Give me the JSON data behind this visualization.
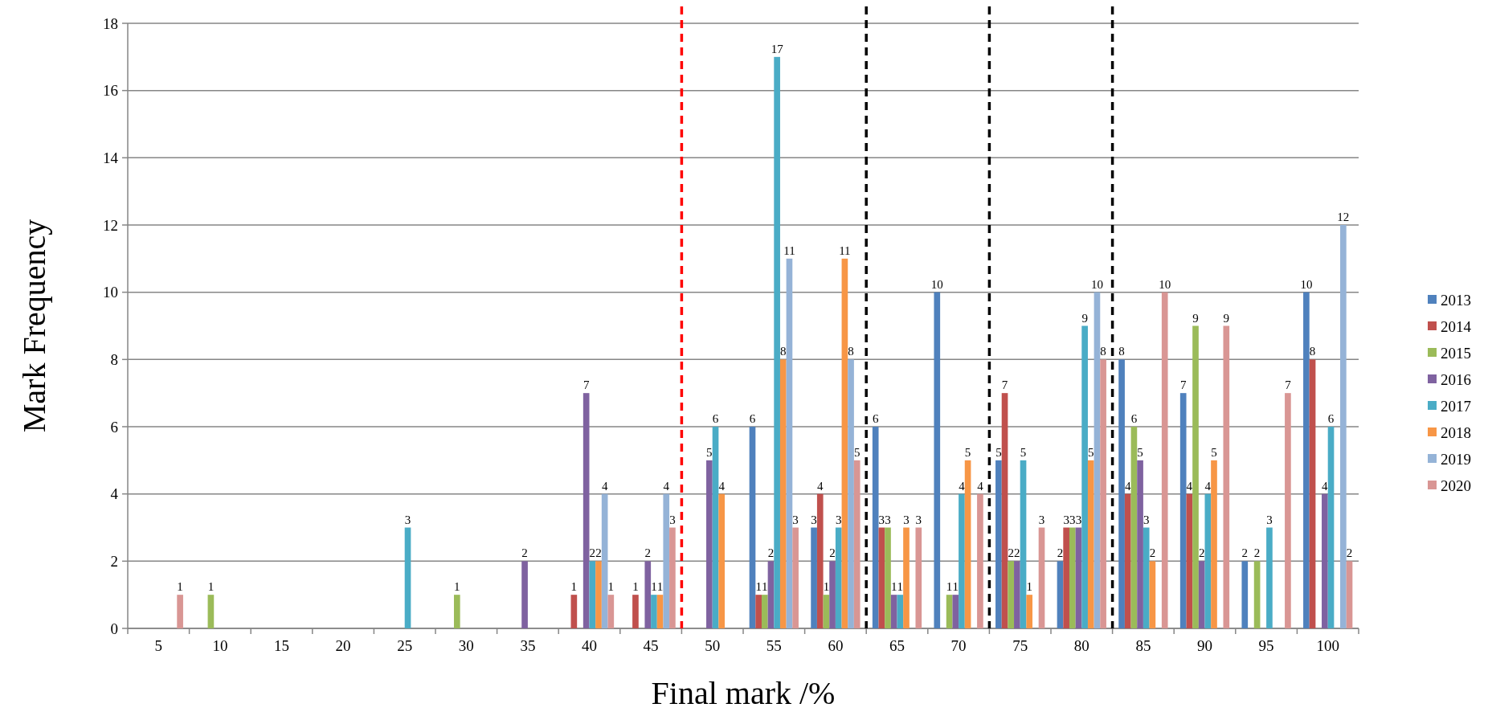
{
  "chart_data": {
    "type": "bar",
    "xlabel": "Final mark /%",
    "ylabel": "Mark Frequency",
    "x": [
      5,
      10,
      15,
      20,
      25,
      30,
      35,
      40,
      45,
      50,
      55,
      60,
      65,
      70,
      75,
      80,
      85,
      90,
      95,
      100
    ],
    "xlim": [
      2.5,
      102.5
    ],
    "xticks": [
      5,
      10,
      15,
      20,
      25,
      30,
      35,
      40,
      45,
      50,
      55,
      60,
      65,
      70,
      75,
      80,
      85,
      90,
      95,
      100
    ],
    "ylim": [
      0,
      18
    ],
    "yticks": [
      0,
      2,
      4,
      6,
      8,
      10,
      12,
      14,
      16,
      18
    ],
    "grid": "y",
    "legend": "right",
    "data_labels": true,
    "series": [
      {
        "name": "2013",
        "color": "#4f81bd",
        "values": [
          null,
          null,
          null,
          null,
          null,
          null,
          null,
          null,
          null,
          null,
          6,
          3,
          6,
          10,
          5,
          2,
          8,
          7,
          2,
          10
        ]
      },
      {
        "name": "2014",
        "color": "#c0504d",
        "values": [
          null,
          null,
          null,
          null,
          null,
          null,
          null,
          1,
          1,
          null,
          1,
          4,
          3,
          null,
          7,
          3,
          4,
          4,
          null,
          8
        ]
      },
      {
        "name": "2015",
        "color": "#9bbb59",
        "values": [
          null,
          1,
          null,
          null,
          null,
          1,
          null,
          null,
          null,
          null,
          1,
          1,
          3,
          1,
          2,
          3,
          6,
          9,
          2,
          null
        ]
      },
      {
        "name": "2016",
        "color": "#7f62a0",
        "values": [
          null,
          null,
          null,
          null,
          null,
          null,
          2,
          7,
          2,
          5,
          2,
          2,
          1,
          1,
          2,
          3,
          5,
          2,
          null,
          4
        ]
      },
      {
        "name": "2017",
        "color": "#4aacc6",
        "values": [
          null,
          null,
          null,
          null,
          3,
          null,
          null,
          2,
          1,
          6,
          17,
          3,
          1,
          4,
          5,
          9,
          3,
          4,
          3,
          6
        ]
      },
      {
        "name": "2018",
        "color": "#f79646",
        "values": [
          null,
          null,
          null,
          null,
          null,
          null,
          null,
          2,
          1,
          4,
          8,
          11,
          3,
          5,
          1,
          5,
          2,
          5,
          null,
          null
        ]
      },
      {
        "name": "2019",
        "color": "#95b3d7",
        "values": [
          null,
          null,
          null,
          null,
          null,
          null,
          null,
          4,
          4,
          null,
          11,
          8,
          null,
          null,
          null,
          10,
          null,
          null,
          null,
          12
        ]
      },
      {
        "name": "2020",
        "color": "#d99694",
        "values": [
          1,
          null,
          null,
          null,
          null,
          null,
          null,
          1,
          3,
          null,
          3,
          5,
          3,
          4,
          3,
          8,
          10,
          9,
          7,
          2
        ]
      }
    ],
    "ref_lines": [
      {
        "axis": "x",
        "value": 47.5,
        "color": "#ff0000",
        "line_style": "dashed"
      },
      {
        "axis": "x",
        "value": 62.5,
        "color": "#000000",
        "line_style": "dashed"
      },
      {
        "axis": "x",
        "value": 72.5,
        "color": "#000000",
        "line_style": "dashed"
      },
      {
        "axis": "x",
        "value": 82.5,
        "color": "#000000",
        "line_style": "dashed"
      }
    ]
  }
}
